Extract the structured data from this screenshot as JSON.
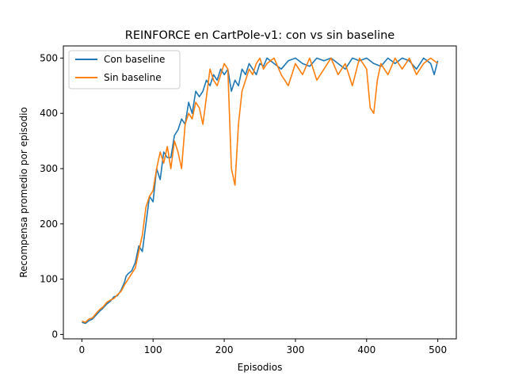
{
  "chart_data": {
    "type": "line",
    "title": "REINFORCE en CartPole-v1: con vs sin baseline",
    "xlabel": "Episodios",
    "ylabel": "Recompensa promedio por episodio",
    "xlim": [
      -26,
      526
    ],
    "ylim": [
      -8,
      522
    ],
    "xticks": [
      0,
      100,
      200,
      300,
      400,
      500
    ],
    "yticks": [
      0,
      100,
      200,
      300,
      400,
      500
    ],
    "grid": false,
    "legend_position": "top-left",
    "series": [
      {
        "name": "Con baseline",
        "color": "#1f77b4",
        "x": [
          0,
          5,
          10,
          15,
          20,
          25,
          30,
          35,
          40,
          45,
          50,
          55,
          60,
          62,
          65,
          70,
          75,
          80,
          85,
          90,
          95,
          100,
          105,
          110,
          115,
          120,
          125,
          130,
          135,
          140,
          145,
          150,
          155,
          160,
          165,
          170,
          175,
          180,
          185,
          190,
          195,
          200,
          205,
          210,
          215,
          220,
          225,
          230,
          235,
          240,
          245,
          250,
          255,
          260,
          270,
          280,
          290,
          300,
          310,
          320,
          330,
          340,
          350,
          360,
          370,
          380,
          390,
          400,
          410,
          420,
          430,
          440,
          450,
          460,
          470,
          480,
          490,
          495,
          500
        ],
        "y": [
          22,
          20,
          25,
          28,
          35,
          42,
          48,
          55,
          60,
          68,
          70,
          80,
          95,
          105,
          110,
          115,
          130,
          160,
          150,
          200,
          250,
          240,
          300,
          280,
          330,
          320,
          320,
          360,
          370,
          390,
          380,
          420,
          400,
          440,
          430,
          440,
          460,
          450,
          470,
          460,
          480,
          470,
          480,
          440,
          460,
          450,
          480,
          470,
          490,
          480,
          470,
          490,
          485,
          500,
          490,
          480,
          495,
          500,
          490,
          485,
          500,
          495,
          500,
          490,
          480,
          500,
          495,
          500,
          490,
          485,
          500,
          490,
          500,
          495,
          480,
          500,
          490,
          470,
          495
        ]
      },
      {
        "name": "Sin baseline",
        "color": "#ff7f0e",
        "x": [
          0,
          5,
          10,
          15,
          20,
          25,
          30,
          35,
          40,
          45,
          50,
          55,
          60,
          65,
          70,
          75,
          80,
          85,
          90,
          95,
          100,
          105,
          110,
          115,
          120,
          125,
          130,
          135,
          140,
          145,
          150,
          155,
          160,
          165,
          170,
          175,
          180,
          185,
          190,
          195,
          200,
          205,
          210,
          215,
          220,
          225,
          230,
          235,
          240,
          245,
          250,
          255,
          260,
          270,
          280,
          290,
          300,
          310,
          320,
          330,
          340,
          350,
          360,
          370,
          380,
          390,
          400,
          405,
          410,
          415,
          420,
          430,
          440,
          450,
          460,
          470,
          480,
          490,
          500
        ],
        "y": [
          24,
          22,
          28,
          30,
          38,
          45,
          50,
          58,
          62,
          65,
          72,
          78,
          90,
          100,
          110,
          120,
          150,
          180,
          230,
          250,
          260,
          300,
          330,
          310,
          340,
          300,
          350,
          330,
          300,
          380,
          400,
          390,
          420,
          410,
          380,
          430,
          480,
          460,
          450,
          470,
          490,
          480,
          300,
          270,
          380,
          440,
          460,
          480,
          470,
          490,
          500,
          480,
          490,
          500,
          470,
          450,
          490,
          470,
          500,
          460,
          480,
          500,
          470,
          490,
          450,
          500,
          480,
          410,
          400,
          460,
          490,
          470,
          500,
          480,
          500,
          470,
          490,
          500,
          490
        ]
      }
    ]
  }
}
